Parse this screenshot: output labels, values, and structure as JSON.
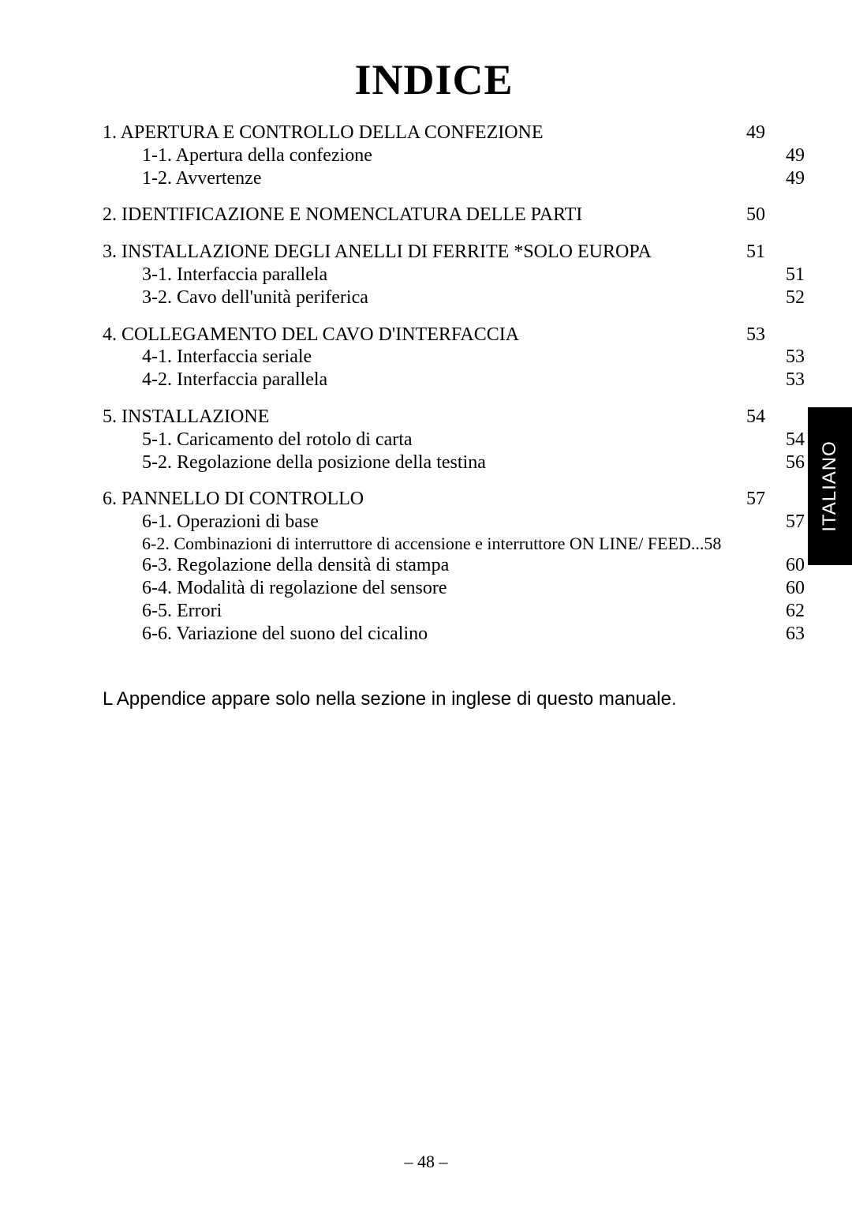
{
  "title": "INDICE",
  "sections": [
    {
      "heading": {
        "label": "1. APERTURA E CONTROLLO DELLA CONFEZIONE",
        "page": "49"
      },
      "subs": [
        {
          "label": "1-1. Apertura della confezione",
          "page": "49"
        },
        {
          "label": "1-2. Avvertenze",
          "page": "49"
        }
      ]
    },
    {
      "heading": {
        "label": "2. IDENTIFICAZIONE E NOMENCLATURA DELLE PARTI",
        "page": "50"
      },
      "subs": []
    },
    {
      "heading": {
        "label": "3. INSTALLAZIONE DEGLI ANELLI DI FERRITE *SOLO EUROPA",
        "page": "51"
      },
      "subs": [
        {
          "label": "3-1. Interfaccia parallela",
          "page": "51"
        },
        {
          "label": "3-2. Cavo dell'unità periferica",
          "page": "52"
        }
      ]
    },
    {
      "heading": {
        "label": "4. COLLEGAMENTO DEL CAVO D'INTERFACCIA",
        "page": "53"
      },
      "subs": [
        {
          "label": "4-1. Interfaccia seriale",
          "page": "53"
        },
        {
          "label": "4-2. Interfaccia parallela",
          "page": "53"
        }
      ]
    },
    {
      "heading": {
        "label": "5. INSTALLAZIONE",
        "page": "54"
      },
      "subs": [
        {
          "label": "5-1. Caricamento del rotolo di carta",
          "page": "54"
        },
        {
          "label": "5-2. Regolazione della posizione della testina",
          "page": "56"
        }
      ]
    },
    {
      "heading": {
        "label": "6. PANNELLO DI CONTROLLO",
        "page": "57"
      },
      "subs": [
        {
          "label": "6-1. Operazioni di base",
          "page": "57"
        },
        {
          "label": "6-2. Combinazioni di interruttore di accensione e interruttore ON LINE/ FEED",
          "page": "58",
          "small": true,
          "no_leader": true
        },
        {
          "label": "6-3. Regolazione della densità di stampa",
          "page": "60"
        },
        {
          "label": "6-4. Modalità di regolazione del sensore",
          "page": "60"
        },
        {
          "label": "6-5. Errori",
          "page": "62"
        },
        {
          "label": "6-6. Variazione del suono del cicalino",
          "page": "63"
        }
      ]
    }
  ],
  "note": "L Appendice appare solo nella sezione in inglese di questo manuale.",
  "sideTab": "ITALIANO",
  "footer": "– 48 –"
}
